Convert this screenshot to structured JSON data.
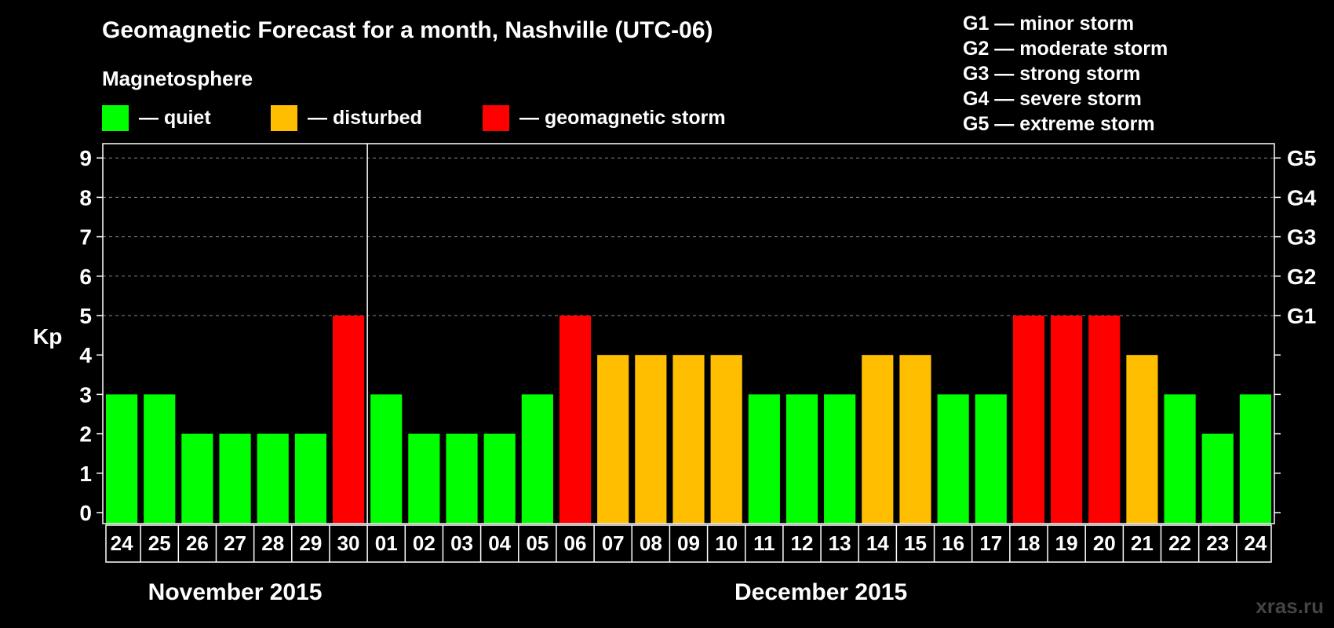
{
  "chart_data": {
    "type": "bar",
    "title": "Geomagnetic Forecast for a month, Nashville (UTC-06)",
    "subtitle": "Magnetosphere",
    "ylabel": "Kp",
    "ylim": [
      0,
      9
    ],
    "yticks": [
      "0",
      "1",
      "2",
      "3",
      "4",
      "5",
      "6",
      "7",
      "8",
      "9"
    ],
    "g_levels": [
      {
        "kp": 5,
        "label": "G1"
      },
      {
        "kp": 6,
        "label": "G2"
      },
      {
        "kp": 7,
        "label": "G3"
      },
      {
        "kp": 8,
        "label": "G4"
      },
      {
        "kp": 9,
        "label": "G5"
      }
    ],
    "status_legend": [
      {
        "key": "quiet",
        "label": "— quiet",
        "color": "#00ff00"
      },
      {
        "key": "disturbed",
        "label": "— disturbed",
        "color": "#ffbf00"
      },
      {
        "key": "storm",
        "label": "— geomagnetic storm",
        "color": "#ff0000"
      }
    ],
    "storm_legend": [
      "G1 — minor storm",
      "G2 — moderate storm",
      "G3 — strong storm",
      "G4 — severe storm",
      "G5 — extreme storm"
    ],
    "categories": [
      "24",
      "25",
      "26",
      "27",
      "28",
      "29",
      "30",
      "01",
      "02",
      "03",
      "04",
      "05",
      "06",
      "07",
      "08",
      "09",
      "10",
      "11",
      "12",
      "13",
      "14",
      "15",
      "16",
      "17",
      "18",
      "19",
      "20",
      "21",
      "22",
      "23",
      "24"
    ],
    "values": [
      3,
      3,
      2,
      2,
      2,
      2,
      5,
      3,
      2,
      2,
      2,
      3,
      5,
      4,
      4,
      4,
      4,
      3,
      3,
      3,
      4,
      4,
      3,
      3,
      5,
      5,
      5,
      4,
      3,
      2,
      3
    ],
    "months": [
      {
        "label": "November 2015",
        "start": 0,
        "end": 6
      },
      {
        "label": "December 2015",
        "start": 7,
        "end": 30
      }
    ],
    "grid": true
  },
  "watermark": "xras.ru"
}
